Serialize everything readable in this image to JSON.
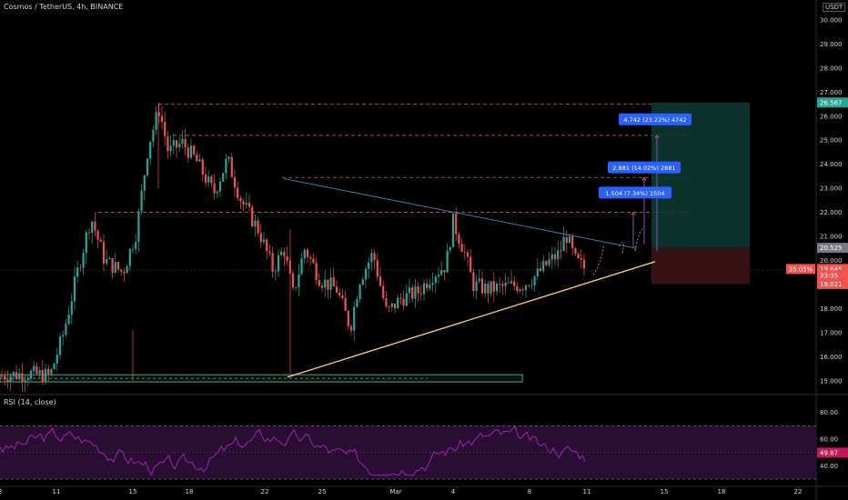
{
  "header": {
    "title": "Cosmos / TetherUS, 4h, BINANCE",
    "currency": "USDT",
    "rsi_label": "RSI (14, close)"
  },
  "colors": {
    "background": "#000000",
    "bull": "#26a69a",
    "bear": "#ef5350",
    "trendline_support": "#f5c27a",
    "trendline_resistance": "#2e7fb3",
    "resistance_dashed": "#d9534f",
    "target_box": "#0e3b32",
    "stop_box": "#3d1416",
    "rsi_line": "#9c27b0",
    "rsi_band": "#2a0d33",
    "label_blue": "#2962ff",
    "last_price_red": "#ef5350"
  },
  "chart_data": [
    {
      "type": "candlestick",
      "title": "Cosmos / TetherUS, 4h, BINANCE",
      "y_axis": {
        "ticks": [
          "30.000",
          "29.000",
          "28.000",
          "27.000",
          "26.000",
          "25.000",
          "24.000",
          "23.000",
          "22.000",
          "21.000",
          "20.000",
          "19.000",
          "18.000",
          "17.000",
          "16.000",
          "15.000"
        ],
        "ylim": [
          14.5,
          30.3
        ]
      },
      "x_axis": {
        "ticks": [
          "8",
          "11",
          "15",
          "18",
          "22",
          "25",
          "Mar",
          "4",
          "8",
          "11",
          "15",
          "18",
          "22"
        ]
      },
      "price_labels": [
        {
          "text": "26.567",
          "value": 26.567,
          "color": "#26a69a"
        },
        {
          "text": "20.525",
          "value": 20.525,
          "color": "#787b86"
        },
        {
          "text": "19.645",
          "value": 19.645,
          "color": "#ef5350"
        },
        {
          "text": "33:35",
          "value": 19.38,
          "color": "#ef5350"
        },
        {
          "text": "19.021",
          "value": 19.021,
          "color": "#ef5350"
        }
      ],
      "percent_tag": "35.05%",
      "target_labels": [
        {
          "text": "1.504 (7.34%) 1504",
          "value": 22.8
        },
        {
          "text": "2.881 (14.02%) 2881",
          "value": 23.85
        },
        {
          "text": "4.742 (23.22%) 4742",
          "value": 25.85
        }
      ],
      "key_levels": [
        26.5,
        25.2,
        23.45,
        22.0
      ],
      "support_zone": [
        14.95,
        15.25
      ],
      "position": {
        "entry": 20.525,
        "target": 26.567,
        "stop": 19.021
      },
      "candles_summary": {
        "start_price": 15.2,
        "high": 26.5,
        "low": 15.2,
        "last": 19.645
      }
    },
    {
      "type": "line",
      "title": "RSI (14, close)",
      "y_axis": {
        "ticks": [
          "80.00",
          "60.00",
          "40.00"
        ],
        "ylim": [
          28,
          92
        ]
      },
      "bands": [
        70,
        30
      ],
      "last_value": 49.87,
      "last_label": "49.87"
    }
  ]
}
